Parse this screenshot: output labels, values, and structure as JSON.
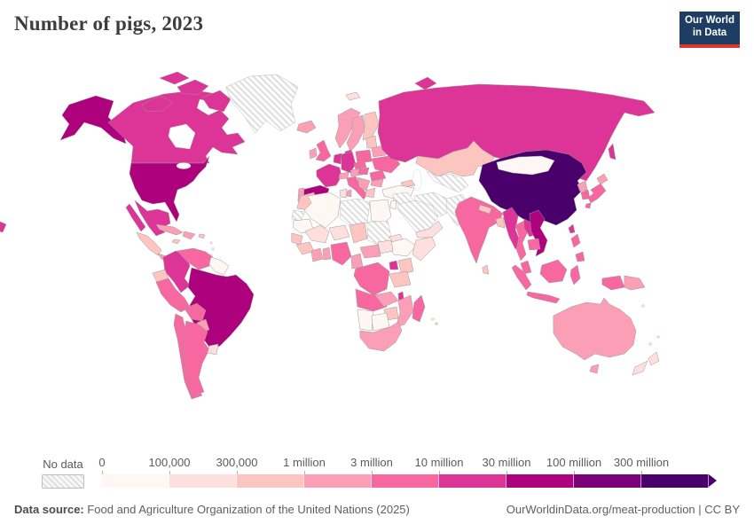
{
  "header": {
    "title": "Number of pigs, 2023",
    "logo": {
      "line1": "Our World",
      "line2": "in Data",
      "bg": "#1d3d63",
      "accent": "#dc352d"
    }
  },
  "legend": {
    "no_data_label": "No data",
    "tick_labels": [
      "0",
      "100,000",
      "300,000",
      "1 million",
      "3 million",
      "10 million",
      "30 million",
      "100 million",
      "300 million"
    ],
    "colors": [
      "#fff7f3",
      "#fde0dd",
      "#fcc5c0",
      "#fa9fb5",
      "#f768a1",
      "#dd3497",
      "#ae017e",
      "#7a0177",
      "#49006a"
    ]
  },
  "footer": {
    "source_label": "Data source:",
    "source_text": " Food and Agriculture Organization of the United Nations (2025)",
    "link_text": "OurWorldinData.org/meat-production | CC BY"
  },
  "map": {
    "no_data_stroke": "#bdbdbd",
    "fills": {
      "alaska": "#ae017e",
      "canada": "#dd3497",
      "arctic-islands-1": "#dd3497",
      "arctic-islands-2": "#dd3497",
      "arctic-islands-3": "#dd3497",
      "arctic-islands-4": "#dd3497",
      "greenland": "no-data",
      "usa": "#ae017e",
      "mexico": "#dd3497",
      "baja": "#dd3497",
      "central-america": "#fcc5c0",
      "panama": "#fa9fb5",
      "cuba": "#fa9fb5",
      "hispaniola": "#fa9fb5",
      "jamaica": "#fcc5c0",
      "puerto-rico": "#fcc5c0",
      "colombia": "#dd3497",
      "venezuela": "#f768a1",
      "guyanas": "#fff7f3",
      "brazil": "#ae017e",
      "ecuador": "#fcc5c0",
      "peru": "#f768a1",
      "bolivia": "#f768a1",
      "paraguay": "#fa9fb5",
      "chile": "#f768a1",
      "argentina": "#f768a1",
      "uruguay": "#fde0dd",
      "iceland": "#fa9fb5",
      "svalbard": "#fde0dd",
      "norway": "#fa9fb5",
      "sweden": "#fa9fb5",
      "finland": "#fcc5c0",
      "denmark": "#dd3497",
      "uk": "#f768a1",
      "ireland": "#fa9fb5",
      "france": "#dd3497",
      "spain": "#ae017e",
      "portugal": "#fa9fb5",
      "germany": "#dd3497",
      "benelux": "#dd3497",
      "switzerland": "#fa9fb5",
      "italy": "#f768a1",
      "sicily": "#f768a1",
      "sardinia": "#fa9fb5",
      "austria": "#fa9fb5",
      "czechia": "#f768a1",
      "poland": "#f768a1",
      "baltics": "#fcc5c0",
      "belarus": "#fa9fb5",
      "ukraine": "#f768a1",
      "romania": "#f768a1",
      "hungary": "#f768a1",
      "balkans": "#fa9fb5",
      "bulgaria": "#fa9fb5",
      "greece": "#fcc5c0",
      "russia": "#dd3497",
      "chukotka-fragment": "#dd3497",
      "novaya-zemlya": "#dd3497",
      "sakhalin": "#dd3497",
      "kazakhstan": "#fcc5c0",
      "central-asia": "no-data",
      "turkey": "#fff7f3",
      "caucasus": "#fcc5c0",
      "iraq-syria": "no-data",
      "iran": "no-data",
      "afghanistan-pakistan": "no-data",
      "saudi-arabia": "no-data",
      "yemen-oman": "#fde0dd",
      "israel-jordan": "#fff7f3",
      "morocco": "#fcc5c0",
      "western-sahara": "no-data",
      "algeria": "#fff7f3",
      "tunisia": "#fde0dd",
      "libya": "no-data",
      "egypt": "#fff7f3",
      "mauritania": "#fff7f3",
      "mali": "#fde0dd",
      "niger": "#fde0dd",
      "chad": "#fcc5c0",
      "sudan": "no-data",
      "eritrea": "#fde0dd",
      "ethiopia": "#fff7f3",
      "somalia": "#fde0dd",
      "senegal": "#fcc5c0",
      "guinea": "#fcc5c0",
      "ivory-coast": "#fa9fb5",
      "ghana": "#fa9fb5",
      "nigeria": "#f768a1",
      "cameroon": "#fa9fb5",
      "car": "#fa9fb5",
      "south-sudan": "#fde0dd",
      "drc": "#f768a1",
      "uganda": "#dd3497",
      "kenya": "#fcc5c0",
      "tanzania": "#fcc5c0",
      "angola": "#f768a1",
      "zambia": "#fa9fb5",
      "malawi": "#dd3497",
      "mozambique": "#fa9fb5",
      "zimbabwe": "#fcc5c0",
      "namibia": "#fff7f3",
      "botswana": "#fff7f3",
      "south-africa": "#fa9fb5",
      "madagascar": "#f768a1",
      "mongolia": "#fff7f3",
      "china": "#49006a",
      "north-korea": "#fa9fb5",
      "south-korea": "#f768a1",
      "hokkaido": "#fa9fb5",
      "japan": "#f768a1",
      "kyushu": "#f768a1",
      "taiwan": "#dd3497",
      "india": "#f768a1",
      "sri-lanka": "#fcc5c0",
      "nepal": "#fcc5c0",
      "bangladesh": "#fcc5c0",
      "myanmar": "#dd3497",
      "thailand": "#f768a1",
      "laos": "#dd3497",
      "vietnam": "#ae017e",
      "cambodia": "#f768a1",
      "malaysia": "#f768a1",
      "north-borneo": "#f768a1",
      "sumatra": "#f768a1",
      "java": "#f768a1",
      "borneo": "#f768a1",
      "sulawesi": "#f768a1",
      "west-papua": "#f768a1",
      "png": "#fa9fb5",
      "philippines-luzon": "#f768a1",
      "philippines-mindanao": "#f768a1",
      "australia": "#fa9fb5",
      "tasmania": "#fa9fb5",
      "nz-north": "#fde0dd",
      "nz-south": "#fde0dd"
    }
  },
  "chart_data": {
    "type": "heatmap",
    "subtype": "world-choropleth",
    "title": "Number of pigs, 2023",
    "unit": "pigs",
    "legend_position": "bottom",
    "bins": [
      {
        "label": "0 – 100,000",
        "color": "#fff7f3"
      },
      {
        "label": "100,000 – 300,000",
        "color": "#fde0dd"
      },
      {
        "label": "300,000 – 1 million",
        "color": "#fcc5c0"
      },
      {
        "label": "1 – 3 million",
        "color": "#fa9fb5"
      },
      {
        "label": "3 – 10 million",
        "color": "#f768a1"
      },
      {
        "label": "10 – 30 million",
        "color": "#dd3497"
      },
      {
        "label": "30 – 100 million",
        "color": "#ae017e"
      },
      {
        "label": "100 – 300 million",
        "color": "#7a0177"
      },
      {
        "label": "300 million +",
        "color": "#49006a"
      },
      {
        "label": "No data",
        "color": "hatched"
      }
    ],
    "countries": [
      {
        "name": "China",
        "bin": "300 million +"
      },
      {
        "name": "United States",
        "bin": "30 – 100 million"
      },
      {
        "name": "Brazil",
        "bin": "30 – 100 million"
      },
      {
        "name": "Spain",
        "bin": "30 – 100 million"
      },
      {
        "name": "Vietnam",
        "bin": "30 – 100 million"
      },
      {
        "name": "Canada",
        "bin": "10 – 30 million"
      },
      {
        "name": "Mexico",
        "bin": "10 – 30 million"
      },
      {
        "name": "Russia",
        "bin": "10 – 30 million"
      },
      {
        "name": "France",
        "bin": "10 – 30 million"
      },
      {
        "name": "Germany",
        "bin": "10 – 30 million"
      },
      {
        "name": "Netherlands",
        "bin": "10 – 30 million"
      },
      {
        "name": "Denmark",
        "bin": "10 – 30 million"
      },
      {
        "name": "Colombia",
        "bin": "10 – 30 million"
      },
      {
        "name": "Myanmar",
        "bin": "10 – 30 million"
      },
      {
        "name": "Philippines",
        "bin": "10 – 30 million"
      },
      {
        "name": "Uganda",
        "bin": "10 – 30 million"
      },
      {
        "name": "United Kingdom",
        "bin": "3 – 10 million"
      },
      {
        "name": "Italy",
        "bin": "3 – 10 million"
      },
      {
        "name": "Poland",
        "bin": "3 – 10 million"
      },
      {
        "name": "Ukraine",
        "bin": "3 – 10 million"
      },
      {
        "name": "Japan",
        "bin": "3 – 10 million"
      },
      {
        "name": "South Korea",
        "bin": "3 – 10 million"
      },
      {
        "name": "India",
        "bin": "3 – 10 million"
      },
      {
        "name": "Thailand",
        "bin": "3 – 10 million"
      },
      {
        "name": "Indonesia",
        "bin": "3 – 10 million"
      },
      {
        "name": "Argentina",
        "bin": "3 – 10 million"
      },
      {
        "name": "Chile",
        "bin": "3 – 10 million"
      },
      {
        "name": "Peru",
        "bin": "3 – 10 million"
      },
      {
        "name": "Venezuela",
        "bin": "3 – 10 million"
      },
      {
        "name": "Nigeria",
        "bin": "3 – 10 million"
      },
      {
        "name": "Angola",
        "bin": "3 – 10 million"
      },
      {
        "name": "Democratic Republic of Congo",
        "bin": "3 – 10 million"
      },
      {
        "name": "Madagascar",
        "bin": "3 – 10 million"
      },
      {
        "name": "Australia",
        "bin": "1 – 3 million"
      },
      {
        "name": "Norway",
        "bin": "1 – 3 million"
      },
      {
        "name": "Sweden",
        "bin": "1 – 3 million"
      },
      {
        "name": "Ireland",
        "bin": "1 – 3 million"
      },
      {
        "name": "Portugal",
        "bin": "1 – 3 million"
      },
      {
        "name": "Cuba",
        "bin": "1 – 3 million"
      },
      {
        "name": "South Africa",
        "bin": "1 – 3 million"
      },
      {
        "name": "Papua New Guinea",
        "bin": "1 – 3 million"
      },
      {
        "name": "Finland",
        "bin": "300,000 – 1 million"
      },
      {
        "name": "Greece",
        "bin": "300,000 – 1 million"
      },
      {
        "name": "Kazakhstan",
        "bin": "300,000 – 1 million"
      },
      {
        "name": "Kenya",
        "bin": "300,000 – 1 million"
      },
      {
        "name": "New Zealand",
        "bin": "100,000 – 300,000"
      },
      {
        "name": "Uruguay",
        "bin": "100,000 – 300,000"
      },
      {
        "name": "Mongolia",
        "bin": "0 – 100,000"
      },
      {
        "name": "Turkey",
        "bin": "0 – 100,000"
      },
      {
        "name": "Egypt",
        "bin": "0 – 100,000"
      },
      {
        "name": "Algeria",
        "bin": "0 – 100,000"
      },
      {
        "name": "Greenland",
        "bin": "No data"
      },
      {
        "name": "Libya",
        "bin": "No data"
      },
      {
        "name": "Sudan",
        "bin": "No data"
      },
      {
        "name": "Saudi Arabia",
        "bin": "No data"
      },
      {
        "name": "Iran",
        "bin": "No data"
      },
      {
        "name": "Afghanistan",
        "bin": "No data"
      },
      {
        "name": "Pakistan",
        "bin": "No data"
      }
    ]
  }
}
